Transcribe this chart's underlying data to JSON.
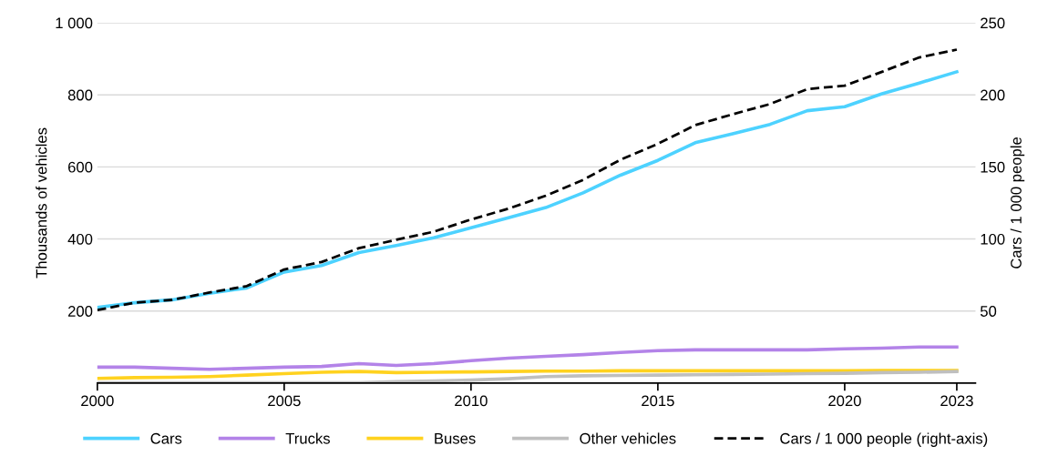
{
  "chart_data": {
    "type": "line",
    "ylabel": "Thousands of vehicles",
    "y2label": "Cars / 1 000 people",
    "x": [
      2000,
      2001,
      2002,
      2003,
      2004,
      2005,
      2006,
      2007,
      2008,
      2009,
      2010,
      2011,
      2012,
      2013,
      2014,
      2015,
      2016,
      2017,
      2018,
      2019,
      2020,
      2021,
      2022,
      2023
    ],
    "series": [
      {
        "name": "Cars",
        "color": "#4dd2ff",
        "values": [
          210,
          223,
          231,
          249,
          264,
          308,
          326,
          362,
          382,
          403,
          431,
          459,
          487,
          528,
          577,
          618,
          667,
          692,
          718,
          756,
          767,
          803,
          833,
          864
        ]
      },
      {
        "name": "Trucks",
        "color": "#b383e8",
        "values": [
          44,
          44,
          41,
          38,
          41,
          44,
          46,
          54,
          49,
          54,
          62,
          69,
          74,
          79,
          85,
          90,
          92,
          92,
          92,
          92,
          95,
          97,
          100,
          100
        ]
      },
      {
        "name": "Buses",
        "color": "#ffd21f",
        "values": [
          13,
          15,
          16,
          18,
          22,
          26,
          30,
          32,
          29,
          30,
          31,
          32,
          33,
          33,
          34,
          34,
          34,
          34,
          34,
          34,
          34,
          35,
          35,
          35
        ]
      },
      {
        "name": "Other vehicles",
        "color": "#bfbfbf",
        "values": [
          1,
          1,
          1,
          1,
          1,
          1,
          1,
          1,
          4,
          6,
          8,
          12,
          18,
          20,
          21,
          22,
          23,
          24,
          25,
          26,
          27,
          29,
          30,
          32
        ]
      },
      {
        "name": "Cars / 1 000 people (right-axis)",
        "color": "#000000",
        "axis": "y2",
        "line_style": "dashed",
        "values": [
          50.6,
          55.8,
          57.7,
          62.8,
          67.3,
          78.8,
          84,
          93.6,
          99.4,
          105,
          113.5,
          121,
          130,
          141,
          155,
          166,
          179,
          186.5,
          193.6,
          204,
          206.4,
          216,
          226,
          231.4
        ]
      }
    ],
    "xlim": [
      2000,
      2023.5
    ],
    "xticks": [
      2000,
      2005,
      2010,
      2015,
      2020,
      2023
    ],
    "ylim": [
      0,
      1000
    ],
    "yticks": [
      200,
      400,
      600,
      800,
      {
        "value": 1000,
        "label": "1 000"
      }
    ],
    "y2lim": [
      0,
      250
    ],
    "y2ticks": [
      50,
      100,
      150,
      200,
      250
    ],
    "grid": "y",
    "legend": "bottom",
    "line_style": "solid",
    "marker": "none"
  }
}
